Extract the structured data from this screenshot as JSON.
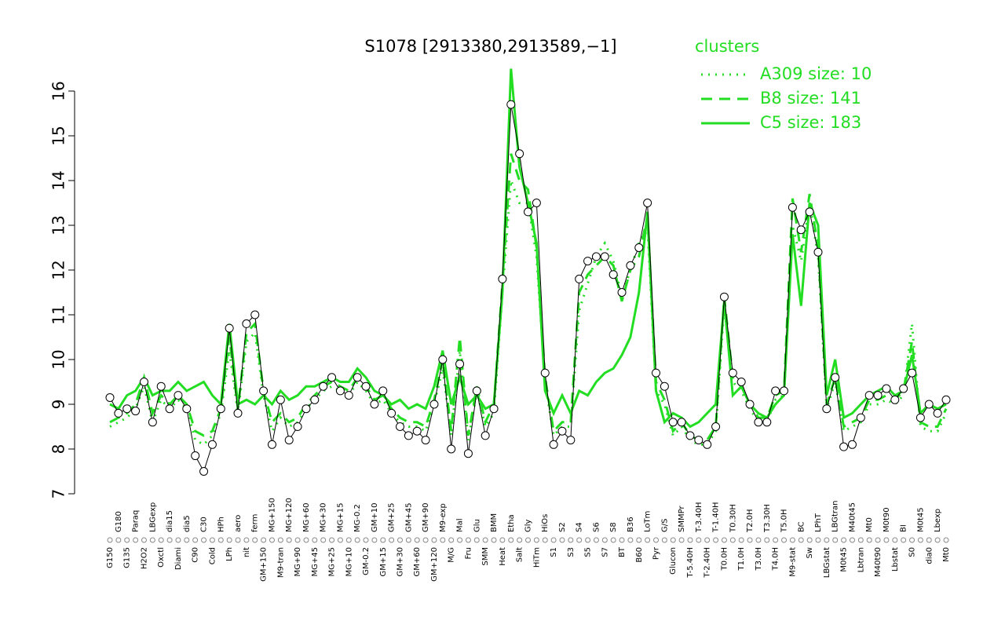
{
  "chart_data": {
    "type": "line",
    "title": "S1078 [2913380,2913589,−1]",
    "legend_title": "clusters",
    "legend_position": "top-right",
    "categories": [
      "G150",
      "G180",
      "G135",
      "Paraq",
      "H2O2",
      "LBGexp",
      "Oxctl",
      "dia15",
      "Diami",
      "dia5",
      "C90",
      "C30",
      "Cold",
      "HPh",
      "LPh",
      "aero",
      "nit",
      "ferm",
      "GM+150",
      "MG+150",
      "M9-tran",
      "MG+120",
      "MG+90",
      "MG+60",
      "MG+45",
      "MG+30",
      "MG+25",
      "MG+15",
      "MG+10",
      "MG-0.2",
      "GM-0.2",
      "GM+10",
      "GM+15",
      "GM+25",
      "GM+30",
      "GM+45",
      "GM+60",
      "GM+90",
      "GM+120",
      "M9-exp",
      "M/G",
      "Mal",
      "Fru",
      "Glu",
      "SMM",
      "BMM",
      "Heat",
      "Etha",
      "Salt",
      "Gly",
      "HiTm",
      "HiOs",
      "S1",
      "S2",
      "S3",
      "S4",
      "S5",
      "S6",
      "S7",
      "S8",
      "BT",
      "B36",
      "B60",
      "LoTm",
      "Pyr",
      "G/S",
      "Glucon",
      "SMMPr",
      "T-5.40H",
      "T-3.40H",
      "T-2.40H",
      "T-1.40H",
      "T0.0H",
      "T0.30H",
      "T1.0H",
      "T2.0H",
      "T3.0H",
      "T3.30H",
      "T4.0H",
      "T5.0H",
      "M9-stat",
      "BC",
      "Sw",
      "LPhT",
      "LBGstat",
      "LBGtran",
      "M0t45",
      "M40t45",
      "Lbtran",
      "Mt0",
      "M40t90",
      "M0t90",
      "Lbstat",
      "BI",
      "S0",
      "M0t45",
      "dia0",
      "Lbexp",
      "Mt0"
    ],
    "color": "#000000",
    "values": [
      9.15,
      8.8,
      8.9,
      8.85,
      9.5,
      8.6,
      9.4,
      8.9,
      9.2,
      8.9,
      7.85,
      7.5,
      8.1,
      8.9,
      10.7,
      8.8,
      10.8,
      11.0,
      9.3,
      8.1,
      9.1,
      8.2,
      8.5,
      8.9,
      9.1,
      9.4,
      9.6,
      9.3,
      9.2,
      9.6,
      9.4,
      9.0,
      9.3,
      8.8,
      8.5,
      8.3,
      8.4,
      8.2,
      9.0,
      10.0,
      8.0,
      9.9,
      7.9,
      9.3,
      8.3,
      8.9,
      11.8,
      15.7,
      14.6,
      13.3,
      13.5,
      9.7,
      8.1,
      8.4,
      8.2,
      11.8,
      12.2,
      12.3,
      12.3,
      11.9,
      11.5,
      12.1,
      12.5,
      13.5,
      9.7,
      9.4,
      8.6,
      8.6,
      8.3,
      8.2,
      8.1,
      8.5,
      11.4,
      9.7,
      9.5,
      9.0,
      8.6,
      8.6,
      9.3,
      9.3,
      13.4,
      12.9,
      13.3,
      12.4,
      8.9,
      9.6,
      8.05,
      8.1,
      8.7,
      9.2,
      9.2,
      9.35,
      9.1,
      9.35,
      9.7,
      8.7,
      9.0,
      8.8,
      9.1
    ],
    "series": [
      {
        "name": "A309 size: 10",
        "color": "#22dd22",
        "style": "dotted",
        "values": [
          8.5,
          8.6,
          8.7,
          8.9,
          9.4,
          8.6,
          9.1,
          8.9,
          9.1,
          8.9,
          8.2,
          8.1,
          8.3,
          8.8,
          10.2,
          8.8,
          10.4,
          10.6,
          9.2,
          8.4,
          8.7,
          8.5,
          8.6,
          8.9,
          9.1,
          9.3,
          9.4,
          9.3,
          9.2,
          9.5,
          9.3,
          9.0,
          9.1,
          8.8,
          8.6,
          8.5,
          8.5,
          8.4,
          9.0,
          9.8,
          8.3,
          10.2,
          8.2,
          9.3,
          8.5,
          8.8,
          11.5,
          14.0,
          13.5,
          13.5,
          12.3,
          9.5,
          8.3,
          8.5,
          8.5,
          11.1,
          11.7,
          12.3,
          12.6,
          12.2,
          11.4,
          12.0,
          12.6,
          13.0,
          9.3,
          9.0,
          8.3,
          8.5,
          8.2,
          8.1,
          8.1,
          8.4,
          11.2,
          9.5,
          9.3,
          8.9,
          8.6,
          8.6,
          9.1,
          9.2,
          13.0,
          12.2,
          13.5,
          12.3,
          8.9,
          9.5,
          8.4,
          8.5,
          8.6,
          9.0,
          9.0,
          9.1,
          9.0,
          9.2,
          10.8,
          8.5,
          8.4,
          8.4,
          8.8
        ]
      },
      {
        "name": "B8 size: 141",
        "color": "#22dd22",
        "style": "dashed",
        "values": [
          8.6,
          8.7,
          8.8,
          9.0,
          9.6,
          8.8,
          9.2,
          9.0,
          9.2,
          9.0,
          8.4,
          8.3,
          8.4,
          8.9,
          10.5,
          8.9,
          10.6,
          10.8,
          9.3,
          8.6,
          8.8,
          8.6,
          8.7,
          9.0,
          9.2,
          9.4,
          9.5,
          9.4,
          9.3,
          9.6,
          9.4,
          9.1,
          9.2,
          8.9,
          8.7,
          8.6,
          8.6,
          8.5,
          9.1,
          10.0,
          8.4,
          10.5,
          8.3,
          9.4,
          8.6,
          9.0,
          11.7,
          14.6,
          14.0,
          13.8,
          12.5,
          9.6,
          8.4,
          8.6,
          8.6,
          11.5,
          11.9,
          12.1,
          12.3,
          12.1,
          11.3,
          12.0,
          12.3,
          13.2,
          9.5,
          9.1,
          8.4,
          8.6,
          8.3,
          8.2,
          8.2,
          8.5,
          11.4,
          9.6,
          9.4,
          9.0,
          8.7,
          8.7,
          9.2,
          9.3,
          13.6,
          12.4,
          13.7,
          12.5,
          9.0,
          9.6,
          8.5,
          8.6,
          8.7,
          9.1,
          9.1,
          9.2,
          9.1,
          9.3,
          10.4,
          8.6,
          8.5,
          8.5,
          8.9
        ]
      },
      {
        "name": "C5 size: 183",
        "color": "#22dd22",
        "style": "solid",
        "values": [
          9.0,
          8.9,
          9.2,
          9.3,
          9.6,
          9.2,
          9.3,
          9.3,
          9.5,
          9.3,
          9.4,
          9.5,
          9.2,
          9.0,
          10.8,
          9.0,
          9.1,
          9.0,
          9.2,
          9.0,
          9.3,
          9.1,
          9.2,
          9.4,
          9.4,
          9.5,
          9.6,
          9.5,
          9.5,
          9.8,
          9.6,
          9.3,
          9.2,
          9.0,
          9.1,
          8.9,
          9.0,
          8.9,
          9.4,
          10.2,
          9.0,
          9.6,
          9.0,
          9.2,
          8.9,
          9.0,
          11.5,
          16.5,
          14.3,
          13.5,
          12.6,
          9.3,
          8.8,
          9.2,
          8.8,
          9.3,
          9.2,
          9.5,
          9.7,
          9.8,
          10.1,
          10.5,
          11.5,
          13.3,
          9.3,
          8.6,
          8.8,
          8.7,
          8.5,
          8.6,
          8.8,
          9.0,
          11.3,
          9.2,
          9.4,
          9.0,
          8.8,
          8.7,
          9.0,
          9.2,
          12.8,
          11.2,
          13.5,
          13.0,
          9.2,
          10.0,
          8.7,
          8.8,
          9.0,
          9.2,
          9.3,
          9.4,
          9.2,
          9.3,
          10.1,
          8.8,
          9.0,
          8.9,
          9.0
        ]
      }
    ],
    "ylim": [
      7,
      16
    ],
    "yticks": [
      7,
      8,
      9,
      10,
      11,
      12,
      13,
      14,
      15,
      16
    ]
  }
}
